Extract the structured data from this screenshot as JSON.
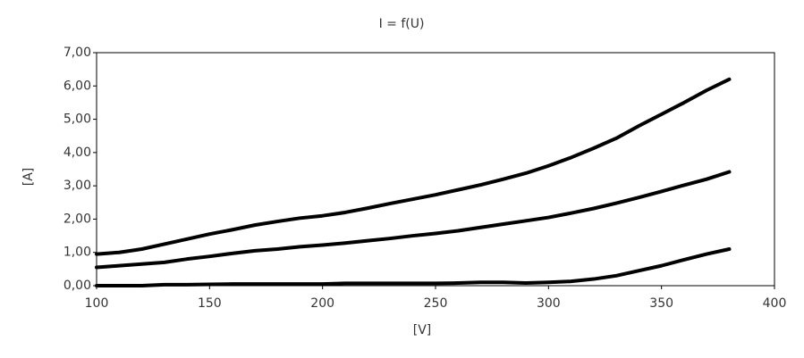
{
  "chart_data": {
    "type": "line",
    "title": "I = f(U)",
    "x_label": "[V]",
    "y_label": "[A]",
    "x": [
      100,
      110,
      120,
      130,
      140,
      150,
      160,
      170,
      180,
      190,
      200,
      210,
      220,
      230,
      240,
      250,
      260,
      270,
      280,
      290,
      300,
      310,
      320,
      330,
      340,
      350,
      360,
      370,
      380
    ],
    "series": [
      {
        "color": "#000000",
        "values": [
          0.95,
          1.0,
          1.1,
          1.25,
          1.4,
          1.55,
          1.68,
          1.82,
          1.93,
          2.03,
          2.1,
          2.2,
          2.33,
          2.47,
          2.6,
          2.73,
          2.88,
          3.03,
          3.2,
          3.38,
          3.6,
          3.85,
          4.13,
          4.43,
          4.8,
          5.15,
          5.5,
          5.87,
          6.2
        ]
      },
      {
        "color": "#000000",
        "values": [
          0.55,
          0.6,
          0.65,
          0.7,
          0.8,
          0.88,
          0.97,
          1.05,
          1.1,
          1.17,
          1.22,
          1.28,
          1.35,
          1.42,
          1.5,
          1.57,
          1.65,
          1.75,
          1.85,
          1.95,
          2.05,
          2.18,
          2.32,
          2.48,
          2.65,
          2.83,
          3.02,
          3.2,
          3.42
        ]
      },
      {
        "color": "#000000",
        "values": [
          0,
          0,
          0,
          0.03,
          0.03,
          0.04,
          0.05,
          0.05,
          0.05,
          0.05,
          0.05,
          0.07,
          0.07,
          0.07,
          0.07,
          0.07,
          0.08,
          0.1,
          0.1,
          0.08,
          0.1,
          0.13,
          0.2,
          0.3,
          0.45,
          0.6,
          0.78,
          0.95,
          1.1
        ]
      }
    ],
    "xlim": [
      100,
      400
    ],
    "xticks": [
      100,
      150,
      200,
      250,
      300,
      350,
      400
    ],
    "ylim": [
      0,
      7
    ],
    "yticks": [
      {
        "value": 0,
        "label": "0,00"
      },
      {
        "value": 1,
        "label": "1,00"
      },
      {
        "value": 2,
        "label": "2,00"
      },
      {
        "value": 3,
        "label": "3,00"
      },
      {
        "value": 4,
        "label": "4,00"
      },
      {
        "value": 5,
        "label": "5,00"
      },
      {
        "value": 6,
        "label": "6,00"
      },
      {
        "value": 7,
        "label": "7,00"
      }
    ],
    "grid": false
  }
}
